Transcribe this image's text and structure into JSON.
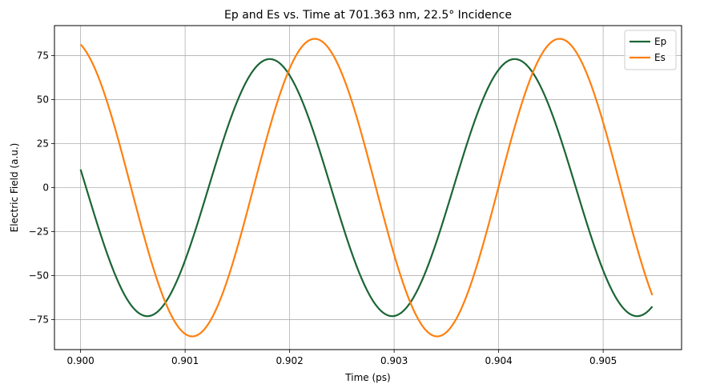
{
  "chart_data": {
    "type": "line",
    "title": "Ep and Es vs. Time at 701.363 nm, 22.5° Incidence",
    "xlabel": "Time (ps)",
    "ylabel": "Electric Field (a.u.)",
    "xlim": [
      0.89975,
      0.90575
    ],
    "ylim": [
      -92,
      92
    ],
    "xticks": [
      0.9,
      0.901,
      0.902,
      0.903,
      0.904,
      0.905
    ],
    "xtick_labels": [
      "0.900",
      "0.901",
      "0.902",
      "0.903",
      "0.904",
      "0.905"
    ],
    "yticks": [
      -75,
      -50,
      -25,
      0,
      25,
      50,
      75
    ],
    "ytick_labels": [
      "−75",
      "−50",
      "−25",
      "0",
      "25",
      "50",
      "75"
    ],
    "grid": true,
    "legend_position": "top-right",
    "x_sampled": [
      0.9,
      0.9003,
      0.90064,
      0.901,
      0.9015,
      0.9018,
      0.9021,
      0.9025,
      0.90297,
      0.9033,
      0.9036,
      0.904,
      0.90415,
      0.9045,
      0.9048,
      0.90505,
      0.9053,
      0.90547
    ],
    "series": [
      {
        "name": "Ep",
        "color": "#1b6535",
        "amplitude": 73,
        "period_ps": 0.002343,
        "peak_time_ps": 0.90181,
        "t_start": 0.9,
        "t_end": 0.90547,
        "values_sampled": [
          7.9,
          -55.3,
          -73.0,
          -37.3,
          48.8,
          73.0,
          48.8,
          -19.3,
          -73.0,
          -49.5,
          -7.9,
          65.0,
          73.0,
          46.0,
          3.0,
          -42.2,
          -72.4,
          -67.8
        ]
      },
      {
        "name": "Es",
        "color": "#ff7f0e",
        "amplitude": 84.5,
        "period_ps": 0.002343,
        "peak_time_ps": 0.90224,
        "t_start": 0.9,
        "t_end": 0.90547,
        "values_sampled": [
          81.3,
          39.7,
          -40.2,
          -84.0,
          -10.7,
          54.5,
          84.5,
          46.8,
          -34.1,
          -76.1,
          -83.5,
          -1.9,
          29.4,
          84.2,
          62.7,
          19.6,
          -37.9,
          -59.9
        ]
      }
    ]
  }
}
